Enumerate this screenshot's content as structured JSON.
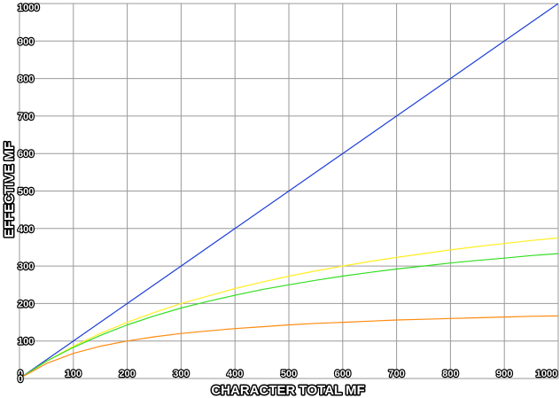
{
  "chart_data": {
    "type": "line",
    "xlabel": "CHARACTER TOTAL MF",
    "ylabel": "EFFECTIVE MF",
    "xlim": [
      0,
      1000
    ],
    "ylim": [
      0,
      1000
    ],
    "x_ticks": [
      0,
      100,
      200,
      300,
      400,
      500,
      600,
      700,
      800,
      900,
      1000
    ],
    "y_ticks": [
      0,
      100,
      200,
      300,
      400,
      500,
      600,
      700,
      800,
      900,
      1000
    ],
    "grid": true,
    "series": [
      {
        "color": "#1f3fd8",
        "x": [
          0,
          100,
          200,
          300,
          400,
          500,
          600,
          700,
          800,
          900,
          1000
        ],
        "y": [
          0,
          100,
          200,
          300,
          400,
          500,
          600,
          700,
          800,
          900,
          1000
        ]
      },
      {
        "color": "#ffee22",
        "x": [
          0,
          50,
          100,
          150,
          200,
          250,
          300,
          350,
          400,
          450,
          500,
          550,
          600,
          650,
          700,
          750,
          800,
          850,
          900,
          950,
          1000
        ],
        "y": [
          0,
          46,
          86,
          120,
          150,
          176,
          200,
          220,
          240,
          257,
          273,
          287,
          300,
          312,
          323,
          333,
          343,
          352,
          360,
          368,
          375
        ]
      },
      {
        "color": "#33dd22",
        "x": [
          0,
          50,
          100,
          150,
          200,
          250,
          300,
          350,
          400,
          450,
          500,
          550,
          600,
          650,
          700,
          750,
          800,
          850,
          900,
          950,
          1000
        ],
        "y": [
          0,
          46,
          83,
          115,
          143,
          167,
          188,
          206,
          222,
          237,
          250,
          262,
          273,
          283,
          292,
          300,
          308,
          315,
          321,
          328,
          333
        ]
      },
      {
        "color": "#ff8a10",
        "x": [
          0,
          50,
          100,
          150,
          200,
          250,
          300,
          350,
          400,
          450,
          500,
          550,
          600,
          650,
          700,
          750,
          800,
          850,
          900,
          950,
          1000
        ],
        "y": [
          0,
          40,
          67,
          86,
          100,
          111,
          120,
          127,
          133,
          138,
          143,
          147,
          150,
          153,
          156,
          158,
          160,
          162,
          164,
          166,
          167
        ]
      }
    ]
  }
}
